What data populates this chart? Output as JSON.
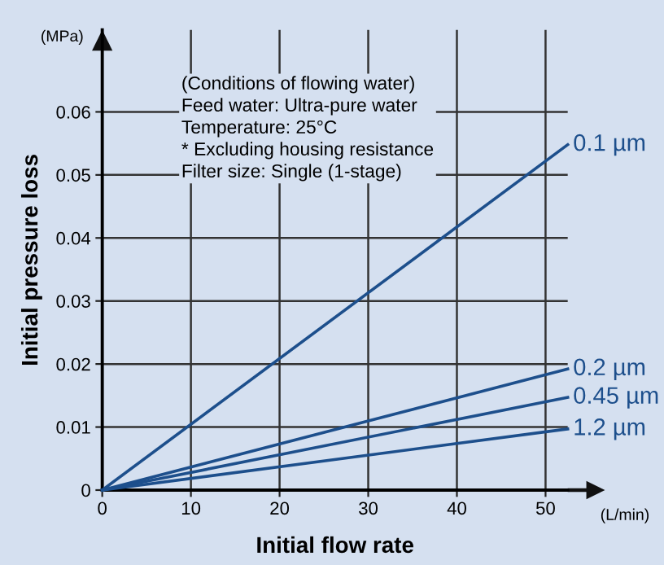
{
  "chart_data": {
    "type": "line",
    "xlabel": "Initial flow rate",
    "ylabel": "Initial pressure loss",
    "x": [
      0,
      52.5
    ],
    "series": [
      {
        "name": "0.1 µm",
        "color": "#1d4f8c",
        "values": [
          0,
          0.0548
        ]
      },
      {
        "name": "0.2 µm",
        "color": "#1d4f8c",
        "values": [
          0,
          0.0192
        ]
      },
      {
        "name": "0.45 µm",
        "color": "#1d4f8c",
        "values": [
          0,
          0.0147
        ]
      },
      {
        "name": "1.2 µm",
        "color": "#1d4f8c",
        "values": [
          0,
          0.0097
        ]
      }
    ],
    "xlim": [
      0,
      52.5
    ],
    "ylim": [
      0,
      0.073
    ],
    "xticks": [
      0,
      10,
      20,
      30,
      40,
      50
    ],
    "yticks": [
      0,
      0.01,
      0.02,
      0.03,
      0.04,
      0.05,
      0.06
    ],
    "grid": true,
    "legend": false,
    "marker": "none",
    "line_style": "solid",
    "annotations": [
      "(MPa)",
      "(L/min)",
      "(Conditions of flowing water)\nFeed water: Ultra-pure water\nTemperature: 25°C\n* Excluding housing resistance\nFilter size: Single (1-stage)"
    ]
  }
}
